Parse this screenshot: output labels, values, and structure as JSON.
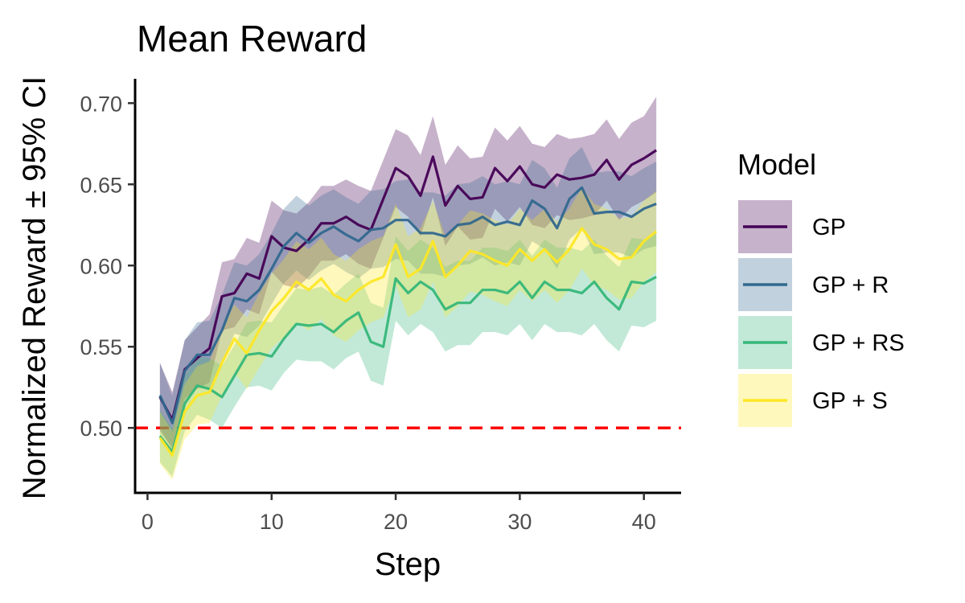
{
  "chart_data": {
    "type": "line",
    "title": "Mean Reward",
    "xlabel": "Step",
    "ylabel": "Normalized Reward ± 95% CI",
    "xlim": [
      -1,
      43
    ],
    "ylim": [
      0.46,
      0.715
    ],
    "xticks": [
      0,
      10,
      20,
      30,
      40
    ],
    "xtick_labels": [
      "0",
      "10",
      "20",
      "30",
      "40"
    ],
    "yticks": [
      0.5,
      0.55,
      0.6,
      0.65,
      0.7
    ],
    "ytick_labels": [
      "0.50",
      "0.55",
      "0.60",
      "0.65",
      "0.70"
    ],
    "reference_line": {
      "y": 0.5,
      "color": "#ff0000",
      "style": "dashed"
    },
    "grid": false,
    "legend": {
      "title": "Model",
      "position": "right"
    },
    "x": [
      1,
      2,
      3,
      4,
      5,
      6,
      7,
      8,
      9,
      10,
      11,
      12,
      13,
      14,
      15,
      16,
      17,
      18,
      19,
      20,
      21,
      22,
      23,
      24,
      25,
      26,
      27,
      28,
      29,
      30,
      31,
      32,
      33,
      34,
      35,
      36,
      37,
      38,
      39,
      40,
      41
    ],
    "series": [
      {
        "name": "GP",
        "color": "#440154",
        "values": [
          0.519,
          0.505,
          0.536,
          0.543,
          0.549,
          0.581,
          0.583,
          0.595,
          0.592,
          0.618,
          0.611,
          0.609,
          0.616,
          0.626,
          0.626,
          0.63,
          0.625,
          0.622,
          0.641,
          0.66,
          0.655,
          0.643,
          0.667,
          0.637,
          0.649,
          0.641,
          0.642,
          0.66,
          0.652,
          0.661,
          0.65,
          0.648,
          0.656,
          0.653,
          0.654,
          0.656,
          0.665,
          0.653,
          0.662,
          0.666,
          0.671
        ],
        "lower": [
          0.498,
          0.488,
          0.518,
          0.524,
          0.528,
          0.56,
          0.562,
          0.573,
          0.57,
          0.596,
          0.588,
          0.586,
          0.593,
          0.603,
          0.603,
          0.607,
          0.601,
          0.598,
          0.617,
          0.636,
          0.63,
          0.618,
          0.642,
          0.612,
          0.624,
          0.616,
          0.617,
          0.635,
          0.627,
          0.636,
          0.625,
          0.623,
          0.631,
          0.628,
          0.629,
          0.631,
          0.64,
          0.628,
          0.636,
          0.64,
          0.645
        ],
        "upper": [
          0.54,
          0.522,
          0.554,
          0.562,
          0.57,
          0.602,
          0.604,
          0.617,
          0.614,
          0.64,
          0.634,
          0.632,
          0.639,
          0.649,
          0.649,
          0.653,
          0.649,
          0.646,
          0.665,
          0.684,
          0.68,
          0.668,
          0.692,
          0.662,
          0.674,
          0.666,
          0.667,
          0.685,
          0.677,
          0.686,
          0.675,
          0.673,
          0.681,
          0.678,
          0.679,
          0.681,
          0.69,
          0.678,
          0.688,
          0.692,
          0.704
        ]
      },
      {
        "name": "GP + R",
        "color": "#31688e",
        "values": [
          0.52,
          0.503,
          0.535,
          0.545,
          0.545,
          0.56,
          0.58,
          0.578,
          0.585,
          0.598,
          0.612,
          0.62,
          0.614,
          0.62,
          0.624,
          0.619,
          0.615,
          0.622,
          0.623,
          0.628,
          0.628,
          0.62,
          0.62,
          0.618,
          0.625,
          0.626,
          0.63,
          0.625,
          0.627,
          0.625,
          0.64,
          0.635,
          0.623,
          0.641,
          0.648,
          0.632,
          0.633,
          0.633,
          0.63,
          0.635,
          0.638
        ],
        "lower": [
          0.5,
          0.486,
          0.516,
          0.525,
          0.524,
          0.538,
          0.558,
          0.556,
          0.563,
          0.576,
          0.589,
          0.597,
          0.591,
          0.597,
          0.601,
          0.596,
          0.592,
          0.598,
          0.599,
          0.604,
          0.603,
          0.595,
          0.595,
          0.593,
          0.6,
          0.601,
          0.605,
          0.6,
          0.602,
          0.6,
          0.615,
          0.61,
          0.598,
          0.616,
          0.623,
          0.607,
          0.608,
          0.608,
          0.605,
          0.61,
          0.612
        ],
        "upper": [
          0.54,
          0.52,
          0.554,
          0.565,
          0.566,
          0.582,
          0.602,
          0.6,
          0.607,
          0.62,
          0.635,
          0.643,
          0.637,
          0.643,
          0.647,
          0.642,
          0.638,
          0.646,
          0.647,
          0.652,
          0.653,
          0.645,
          0.645,
          0.643,
          0.65,
          0.651,
          0.655,
          0.65,
          0.652,
          0.65,
          0.665,
          0.66,
          0.648,
          0.666,
          0.673,
          0.657,
          0.658,
          0.658,
          0.655,
          0.66,
          0.664
        ]
      },
      {
        "name": "GP + RS",
        "color": "#35b779",
        "values": [
          0.495,
          0.485,
          0.515,
          0.526,
          0.524,
          0.519,
          0.532,
          0.545,
          0.546,
          0.544,
          0.555,
          0.564,
          0.563,
          0.564,
          0.559,
          0.566,
          0.571,
          0.553,
          0.55,
          0.592,
          0.583,
          0.59,
          0.585,
          0.573,
          0.577,
          0.577,
          0.585,
          0.585,
          0.583,
          0.59,
          0.58,
          0.59,
          0.585,
          0.585,
          0.583,
          0.59,
          0.58,
          0.573,
          0.59,
          0.589,
          0.593
        ],
        "lower": [
          0.479,
          0.47,
          0.498,
          0.508,
          0.505,
          0.5,
          0.513,
          0.525,
          0.526,
          0.523,
          0.534,
          0.542,
          0.541,
          0.541,
          0.536,
          0.543,
          0.547,
          0.529,
          0.526,
          0.566,
          0.557,
          0.564,
          0.559,
          0.547,
          0.551,
          0.551,
          0.559,
          0.559,
          0.557,
          0.564,
          0.554,
          0.564,
          0.559,
          0.559,
          0.557,
          0.564,
          0.554,
          0.547,
          0.563,
          0.562,
          0.566
        ],
        "upper": [
          0.511,
          0.5,
          0.532,
          0.544,
          0.543,
          0.538,
          0.551,
          0.565,
          0.566,
          0.565,
          0.576,
          0.586,
          0.585,
          0.587,
          0.582,
          0.589,
          0.595,
          0.577,
          0.574,
          0.618,
          0.609,
          0.616,
          0.611,
          0.599,
          0.603,
          0.603,
          0.611,
          0.611,
          0.609,
          0.616,
          0.606,
          0.616,
          0.611,
          0.611,
          0.609,
          0.616,
          0.606,
          0.599,
          0.617,
          0.616,
          0.62
        ]
      },
      {
        "name": "GP + S",
        "color": "#fde725",
        "values": [
          0.494,
          0.483,
          0.51,
          0.52,
          0.522,
          0.54,
          0.555,
          0.546,
          0.56,
          0.572,
          0.58,
          0.59,
          0.585,
          0.592,
          0.582,
          0.578,
          0.585,
          0.59,
          0.593,
          0.613,
          0.593,
          0.598,
          0.615,
          0.593,
          0.6,
          0.609,
          0.607,
          0.603,
          0.6,
          0.61,
          0.603,
          0.61,
          0.602,
          0.61,
          0.623,
          0.613,
          0.61,
          0.604,
          0.605,
          0.615,
          0.621
        ],
        "lower": [
          0.478,
          0.468,
          0.493,
          0.502,
          0.503,
          0.52,
          0.534,
          0.524,
          0.537,
          0.549,
          0.556,
          0.565,
          0.56,
          0.567,
          0.557,
          0.553,
          0.56,
          0.565,
          0.568,
          0.588,
          0.568,
          0.573,
          0.59,
          0.568,
          0.575,
          0.584,
          0.582,
          0.578,
          0.575,
          0.585,
          0.578,
          0.585,
          0.577,
          0.585,
          0.598,
          0.588,
          0.585,
          0.579,
          0.58,
          0.59,
          0.596
        ],
        "upper": [
          0.51,
          0.498,
          0.527,
          0.538,
          0.541,
          0.56,
          0.576,
          0.568,
          0.583,
          0.595,
          0.604,
          0.615,
          0.61,
          0.617,
          0.607,
          0.603,
          0.61,
          0.615,
          0.618,
          0.638,
          0.618,
          0.623,
          0.64,
          0.618,
          0.625,
          0.634,
          0.632,
          0.628,
          0.625,
          0.635,
          0.628,
          0.635,
          0.627,
          0.635,
          0.648,
          0.638,
          0.635,
          0.629,
          0.63,
          0.64,
          0.646
        ]
      }
    ]
  }
}
